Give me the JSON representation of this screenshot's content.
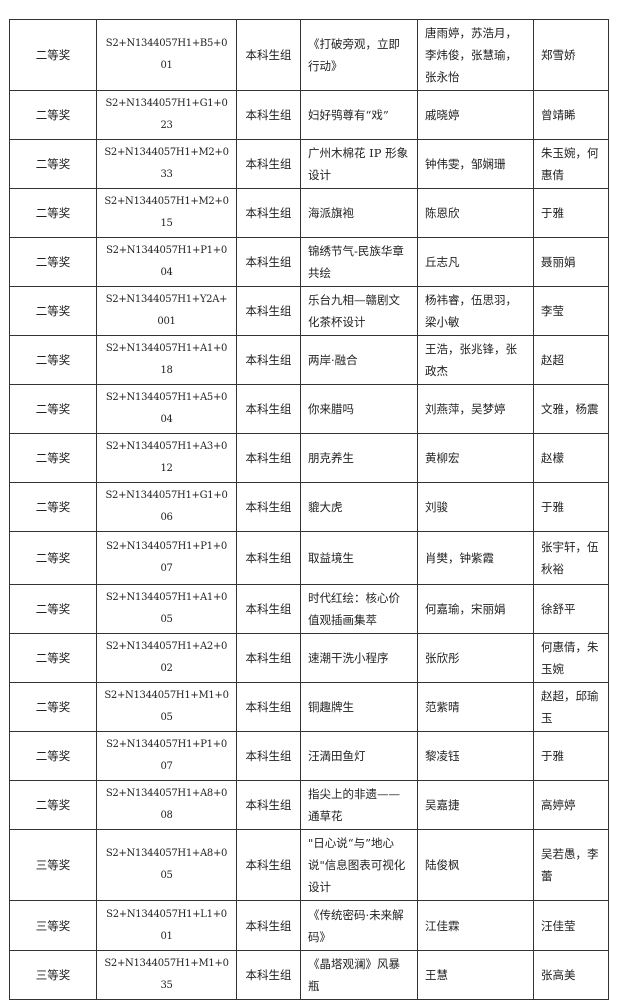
{
  "table": {
    "rows": [
      {
        "award": "二等奖",
        "code": "S2+N1344057H1+B5+001",
        "group": "本科生组",
        "title": "《打破旁观，立即行动》",
        "authors": "唐雨婷，苏浩月，李炜俊，张慧瑜，张永怡",
        "advisor": "郑雪娇"
      },
      {
        "award": "二等奖",
        "code": "S2+N1344057H1+G1+023",
        "group": "本科生组",
        "title": "妇好鸮尊有“戏”",
        "authors": "戚晓婷",
        "advisor": "曾靖睎"
      },
      {
        "award": "二等奖",
        "code": "S2+N1344057H1+M2+033",
        "group": "本科生组",
        "title": "广州木棉花 IP 形象设计",
        "authors": "钟伟雯，邹娴珊",
        "advisor": "朱玉婉，何惠倩"
      },
      {
        "award": "二等奖",
        "code": "S2+N1344057H1+M2+015",
        "group": "本科生组",
        "title": "海派旗袍",
        "authors": "陈恩欣",
        "advisor": "于雅"
      },
      {
        "award": "二等奖",
        "code": "S2+N1344057H1+P1+004",
        "group": "本科生组",
        "title": "锦绣节气-民族华章共绘",
        "authors": "丘志凡",
        "advisor": "聂丽娟"
      },
      {
        "award": "二等奖",
        "code": "S2+N1344057H1+Y2A+001",
        "group": "本科生组",
        "title": "乐台九相—赣剧文化茶杯设计",
        "authors": "杨祎睿，伍思羽，梁小敏",
        "advisor": "李莹"
      },
      {
        "award": "二等奖",
        "code": "S2+N1344057H1+A1+018",
        "group": "本科生组",
        "title": "两岸·融合",
        "authors": "王浩，张兆锋，张政杰",
        "advisor": "赵超"
      },
      {
        "award": "二等奖",
        "code": "S2+N1344057H1+A5+004",
        "group": "本科生组",
        "title": "你来腊吗",
        "authors": "刘燕萍，吴梦婷",
        "advisor": "文雅，杨震"
      },
      {
        "award": "二等奖",
        "code": "S2+N1344057H1+A3+012",
        "group": "本科生组",
        "title": "朋克养生",
        "authors": "黄柳宏",
        "advisor": "赵檬"
      },
      {
        "award": "二等奖",
        "code": "S2+N1344057H1+G1+006",
        "group": "本科生组",
        "title": "貔大虎",
        "authors": "刘骏",
        "advisor": "于雅"
      },
      {
        "award": "二等奖",
        "code": "S2+N1344057H1+P1+007",
        "group": "本科生组",
        "title": "取益境生",
        "authors": "肖樊，钟紫霞",
        "advisor": "张宇轩，伍秋裕"
      },
      {
        "award": "二等奖",
        "code": "S2+N1344057H1+A1+005",
        "group": "本科生组",
        "title": "时代红绘：核心价值观插画集萃",
        "authors": "何嘉瑜，宋丽娟",
        "advisor": "徐舒平"
      },
      {
        "award": "二等奖",
        "code": "S2+N1344057H1+A2+002",
        "group": "本科生组",
        "title": "速潮干洗小程序",
        "authors": "张欣彤",
        "advisor": "何惠倩，朱玉婉"
      },
      {
        "award": "二等奖",
        "code": "S2+N1344057H1+M1+005",
        "group": "本科生组",
        "title": "铜趣牌生",
        "authors": "范紫晴",
        "advisor": "赵超，邱瑜玉"
      },
      {
        "award": "二等奖",
        "code": "S2+N1344057H1+P1+007",
        "group": "本科生组",
        "title": "汪満田鱼灯",
        "authors": "黎凌钰",
        "advisor": "于雅"
      },
      {
        "award": "二等奖",
        "code": "S2+N1344057H1+A8+008",
        "group": "本科生组",
        "title": "指尖上的非遗——通草花",
        "authors": "吴嘉捷",
        "advisor": "高婷婷"
      },
      {
        "award": "三等奖",
        "code": "S2+N1344057H1+A8+005",
        "group": "本科生组",
        "title": "\"日心说“与”地心说\"信息图表可视化设计",
        "authors": "陆俊枫",
        "advisor": "吴若愚，李蕾"
      },
      {
        "award": "三等奖",
        "code": "S2+N1344057H1+L1+001",
        "group": "本科生组",
        "title": "《传统密码·未来解码》",
        "authors": "江佳霖",
        "advisor": "汪佳莹"
      },
      {
        "award": "三等奖",
        "code": "S2+N1344057H1+M1+035",
        "group": "本科生组",
        "title": "《晶塔观澜》风暴瓶",
        "authors": "王慧",
        "advisor": "张高美"
      }
    ]
  }
}
